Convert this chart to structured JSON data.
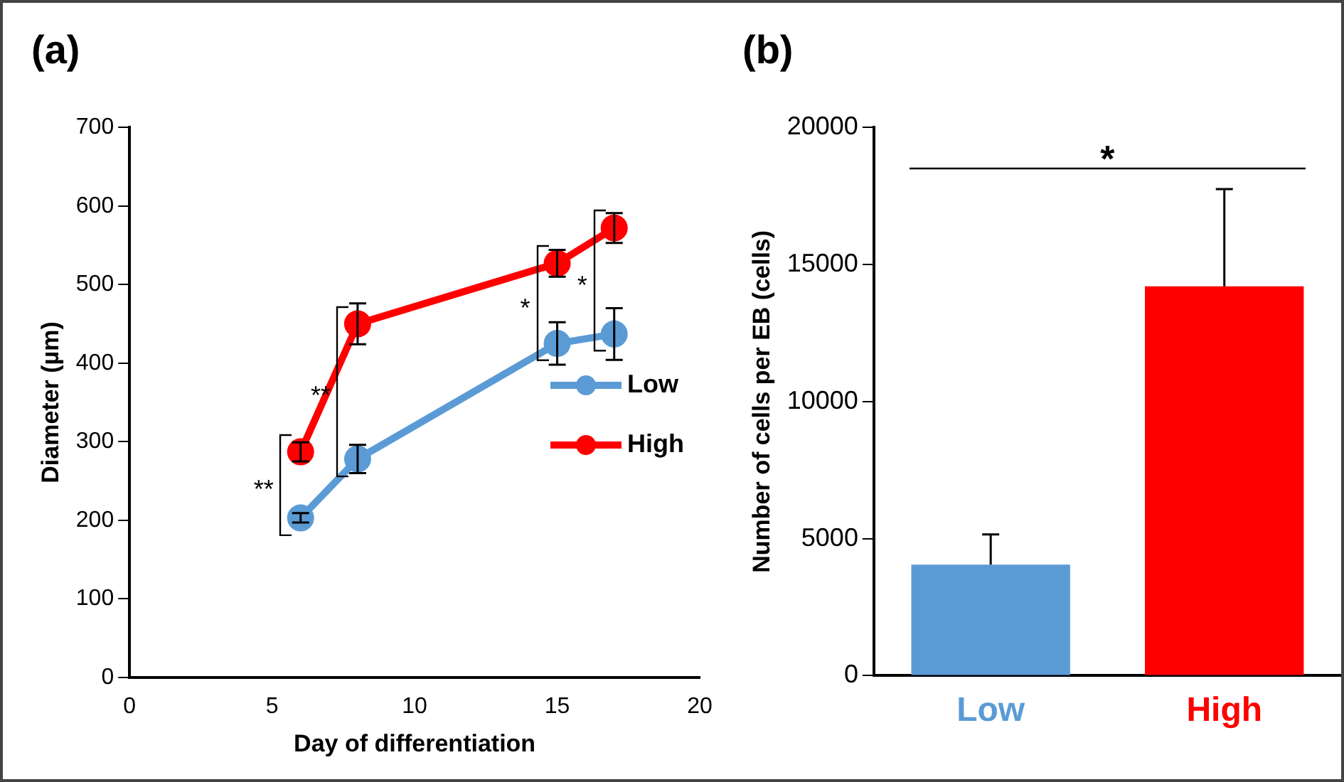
{
  "chart_data": [
    {
      "type": "line",
      "title": "(a)",
      "xlabel": "Day of differentiation",
      "ylabel": "Diameter (µm)",
      "x": [
        6,
        8,
        15,
        17
      ],
      "series": [
        {
          "name": "Low",
          "color": "#5b9bd5",
          "values": [
            203,
            278,
            425,
            437
          ],
          "errors": [
            6,
            18,
            27,
            33
          ]
        },
        {
          "name": "High",
          "color": "#ff0000",
          "values": [
            287,
            450,
            527,
            572
          ],
          "errors": [
            12,
            26,
            17,
            19
          ]
        }
      ],
      "xlim": [
        0,
        20
      ],
      "xticks": [
        0,
        5,
        10,
        15,
        20
      ],
      "ylim": [
        0,
        700
      ],
      "yticks": [
        0,
        100,
        200,
        300,
        400,
        500,
        600,
        700
      ],
      "marker": "circle",
      "legend": "right",
      "grid": false,
      "annotations": [
        "**",
        "**",
        "*",
        "*"
      ]
    },
    {
      "type": "bar",
      "title": "(b)",
      "ylabel": "Number of cells per EB (cells)",
      "categories": [
        "Low",
        "High"
      ],
      "values": [
        4050,
        14200
      ],
      "colors": [
        "#5b9bd5",
        "#ff0000"
      ],
      "errors": [
        [
          4050,
          5150
        ],
        [
          14200,
          17750
        ]
      ],
      "ylim": [
        0,
        20000
      ],
      "yticks": [
        0,
        5000,
        10000,
        15000,
        20000
      ],
      "grid": false,
      "legend": false,
      "ref_lines": [
        {
          "axis": "y",
          "value": 18500,
          "label": "*"
        }
      ]
    }
  ]
}
